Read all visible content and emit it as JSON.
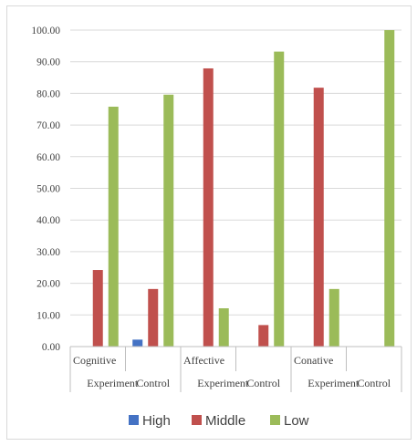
{
  "chart_data": {
    "type": "bar",
    "groups": [
      "Cognitive",
      "Affective",
      "Conative"
    ],
    "categories": [
      "Experiment",
      "Control",
      "Experiment",
      "Control",
      "Experiment",
      "Control"
    ],
    "series": [
      {
        "name": "High",
        "color": "#4472c4",
        "values": [
          0,
          2.2,
          0,
          0,
          0,
          0
        ]
      },
      {
        "name": "Middle",
        "color": "#c0504d",
        "values": [
          24.2,
          18.2,
          87.9,
          6.8,
          81.8,
          0
        ]
      },
      {
        "name": "Low",
        "color": "#9bbb59",
        "values": [
          75.8,
          79.6,
          12.1,
          93.2,
          18.2,
          100
        ]
      }
    ],
    "yticks": [
      "0.00",
      "10.00",
      "20.00",
      "30.00",
      "40.00",
      "50.00",
      "60.00",
      "70.00",
      "80.00",
      "90.00",
      "100.00"
    ],
    "ylim": [
      0,
      100
    ],
    "grid": true,
    "legend": "bottom",
    "title": "",
    "xlabel": "",
    "ylabel": ""
  }
}
